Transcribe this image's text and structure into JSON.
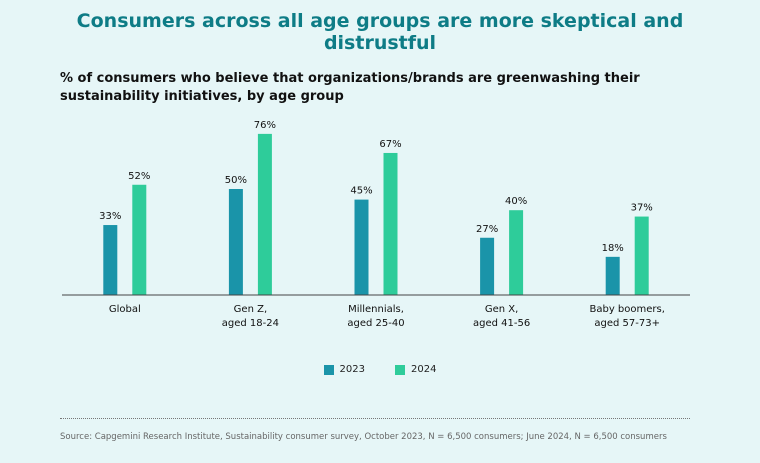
{
  "title": "Consumers across all age groups are more skeptical and distrustful",
  "subtitle": "% of consumers who believe that organizations/brands are greenwashing their sustainability initiatives, by age group",
  "source": "Source: Capgemini Research Institute, Sustainability consumer survey, October 2023, N = 6,500 consumers; June 2024, N = 6,500 consumers",
  "colors": {
    "s2023": "#1a94a9",
    "s2024": "#2ecc9a",
    "axis": "#444"
  },
  "chart_data": {
    "type": "bar",
    "categories": [
      [
        "Global"
      ],
      [
        "Gen Z,",
        "aged 18-24"
      ],
      [
        "Millennials,",
        "aged 25-40"
      ],
      [
        "Gen X,",
        "aged 41-56"
      ],
      [
        "Baby boomers,",
        "aged 57-73+"
      ]
    ],
    "series": [
      {
        "name": "2023",
        "values": [
          33,
          50,
          45,
          27,
          18
        ],
        "labels": [
          "33%",
          "50%",
          "45%",
          "27%",
          "18%"
        ]
      },
      {
        "name": "2024",
        "values": [
          52,
          76,
          67,
          40,
          37
        ],
        "labels": [
          "52%",
          "76%",
          "67%",
          "40%",
          "37%"
        ]
      }
    ],
    "ylim": [
      0,
      100
    ],
    "grid": false,
    "legend": "bottom"
  }
}
